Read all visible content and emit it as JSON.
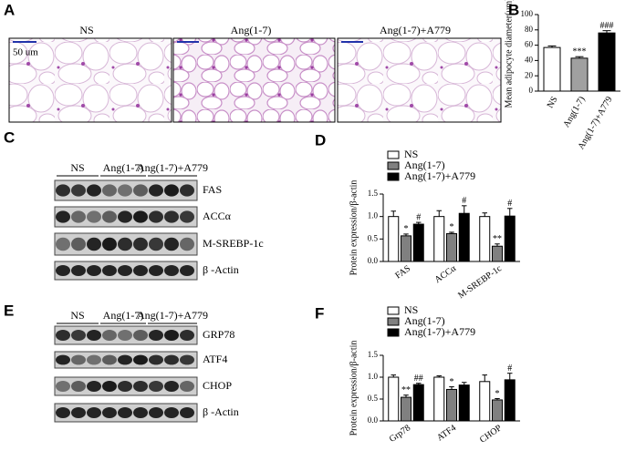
{
  "panel_a": {
    "letter": "A",
    "titles": [
      "NS",
      "Ang(1-7)",
      "Ang(1-7)+A779"
    ],
    "scale_bar": "50 um"
  },
  "panel_c": {
    "letter": "C",
    "groups": [
      "NS",
      "Ang(1-7)",
      "Ang(1-7)+A779"
    ],
    "rows": [
      "FAS",
      "ACCα",
      "M-SREBP-1c",
      "β -Actin"
    ]
  },
  "panel_e": {
    "letter": "E",
    "groups": [
      "NS",
      "Ang(1-7)",
      "Ang(1-7)+A779"
    ],
    "rows": [
      "GRP78",
      "ATF4",
      "CHOP",
      "β -Actin"
    ]
  },
  "chart_data": [
    {
      "type": "bar",
      "panel_label": "B",
      "y_label": "Mean adipocyte diameter(um)",
      "categories": [
        "NS",
        "Ang(1-7)",
        "Ang(1-7)+A779"
      ],
      "values": [
        57,
        43,
        76
      ],
      "errors": [
        2,
        2,
        3
      ],
      "colors": [
        "#ffffff",
        "#a0a0a0",
        "#000000"
      ],
      "annotations": [
        null,
        "***",
        "###"
      ],
      "ylim": [
        0,
        100
      ],
      "yticks": [
        0,
        20,
        40,
        60,
        80,
        100
      ]
    },
    {
      "type": "bar",
      "panel_label": "D",
      "y_label": "Protein expression/β-actin",
      "categories": [
        "FAS",
        "ACCα",
        "M-SREBP-1c"
      ],
      "series": [
        {
          "name": "NS",
          "color": "#ffffff",
          "values": [
            1.0,
            1.0,
            1.0
          ],
          "errors": [
            0.12,
            0.13,
            0.08
          ]
        },
        {
          "name": "Ang(1-7)",
          "color": "#808080",
          "values": [
            0.57,
            0.62,
            0.34
          ],
          "errors": [
            0.04,
            0.03,
            0.05
          ],
          "annotations": [
            "*",
            "*",
            "**"
          ]
        },
        {
          "name": "Ang(1-7)+A779",
          "color": "#000000",
          "values": [
            0.83,
            1.07,
            1.01
          ],
          "errors": [
            0.04,
            0.17,
            0.17
          ],
          "annotations": [
            "#",
            "#",
            "#"
          ]
        }
      ],
      "ylim": [
        0,
        1.5
      ],
      "yticks": [
        {
          "value": 0,
          "label": "0.0"
        },
        0.5,
        {
          "value": 1,
          "label": "1.0"
        },
        1.5
      ]
    },
    {
      "type": "bar",
      "panel_label": "F",
      "y_label": "Protein expression/β-actin",
      "categories": [
        "Grp78",
        "ATF4",
        "CHOP"
      ],
      "series": [
        {
          "name": "NS",
          "color": "#ffffff",
          "values": [
            1.0,
            1.0,
            0.9
          ],
          "errors": [
            0.05,
            0.03,
            0.15
          ]
        },
        {
          "name": "Ang(1-7)",
          "color": "#808080",
          "values": [
            0.54,
            0.72,
            0.48
          ],
          "errors": [
            0.05,
            0.06,
            0.03
          ],
          "annotations": [
            "**",
            "*",
            "*"
          ]
        },
        {
          "name": "Ang(1-7)+A779",
          "color": "#000000",
          "values": [
            0.83,
            0.82,
            0.94
          ],
          "errors": [
            0.03,
            0.06,
            0.15
          ],
          "annotations": [
            "##",
            null,
            "#"
          ]
        }
      ],
      "ylim": [
        0,
        1.5
      ],
      "yticks": [
        {
          "value": 0,
          "label": "0.0"
        },
        0.5,
        {
          "value": 1,
          "label": "1.0"
        },
        1.5
      ]
    }
  ]
}
